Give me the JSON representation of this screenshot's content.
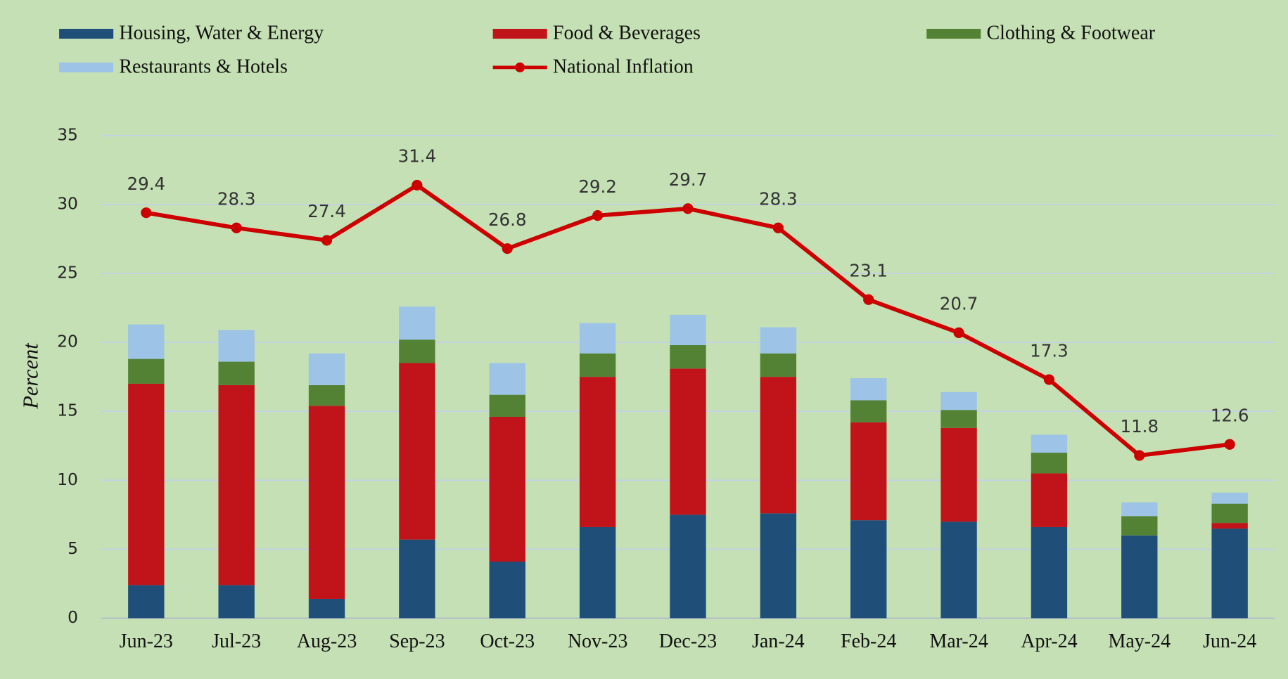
{
  "chart_data": {
    "type": "bar",
    "stacked": true,
    "y_label": "Percent",
    "categories": [
      "Jun-23",
      "Jul-23",
      "Aug-23",
      "Sep-23",
      "Oct-23",
      "Nov-23",
      "Dec-23",
      "Jan-24",
      "Feb-24",
      "Mar-24",
      "Apr-24",
      "May-24",
      "Jun-24"
    ],
    "series": [
      {
        "name": "Housing, Water & Energy",
        "color": "#1f4e79",
        "values": [
          2.4,
          2.4,
          1.4,
          5.7,
          4.1,
          6.6,
          7.5,
          7.6,
          7.1,
          7.0,
          6.6,
          6.0,
          6.5
        ]
      },
      {
        "name": "Food & Beverages",
        "color": "#c0141a",
        "values": [
          14.6,
          14.5,
          14.0,
          12.8,
          10.5,
          10.9,
          10.6,
          9.9,
          7.1,
          6.8,
          3.9,
          0.0,
          0.4
        ]
      },
      {
        "name": "Clothing & Footwear",
        "color": "#548235",
        "values": [
          1.8,
          1.7,
          1.5,
          1.7,
          1.6,
          1.7,
          1.7,
          1.7,
          1.6,
          1.3,
          1.5,
          1.4,
          1.4
        ]
      },
      {
        "name": "Restaurants & Hotels",
        "color": "#9dc3e6",
        "values": [
          2.5,
          2.3,
          2.3,
          2.4,
          2.3,
          2.2,
          2.2,
          1.9,
          1.6,
          1.3,
          1.3,
          1.0,
          0.8
        ]
      },
      {
        "name": "National Inflation",
        "color": "#cc0000",
        "type": "line",
        "values": [
          29.4,
          28.3,
          27.4,
          31.4,
          26.8,
          29.2,
          29.7,
          28.3,
          23.1,
          20.7,
          17.3,
          11.8,
          12.6
        ]
      }
    ],
    "ylim": [
      0,
      35
    ],
    "yticks": [
      0,
      5,
      10,
      15,
      20,
      25,
      30,
      35
    ],
    "grid": true,
    "data_labels": true,
    "legend": "top"
  }
}
